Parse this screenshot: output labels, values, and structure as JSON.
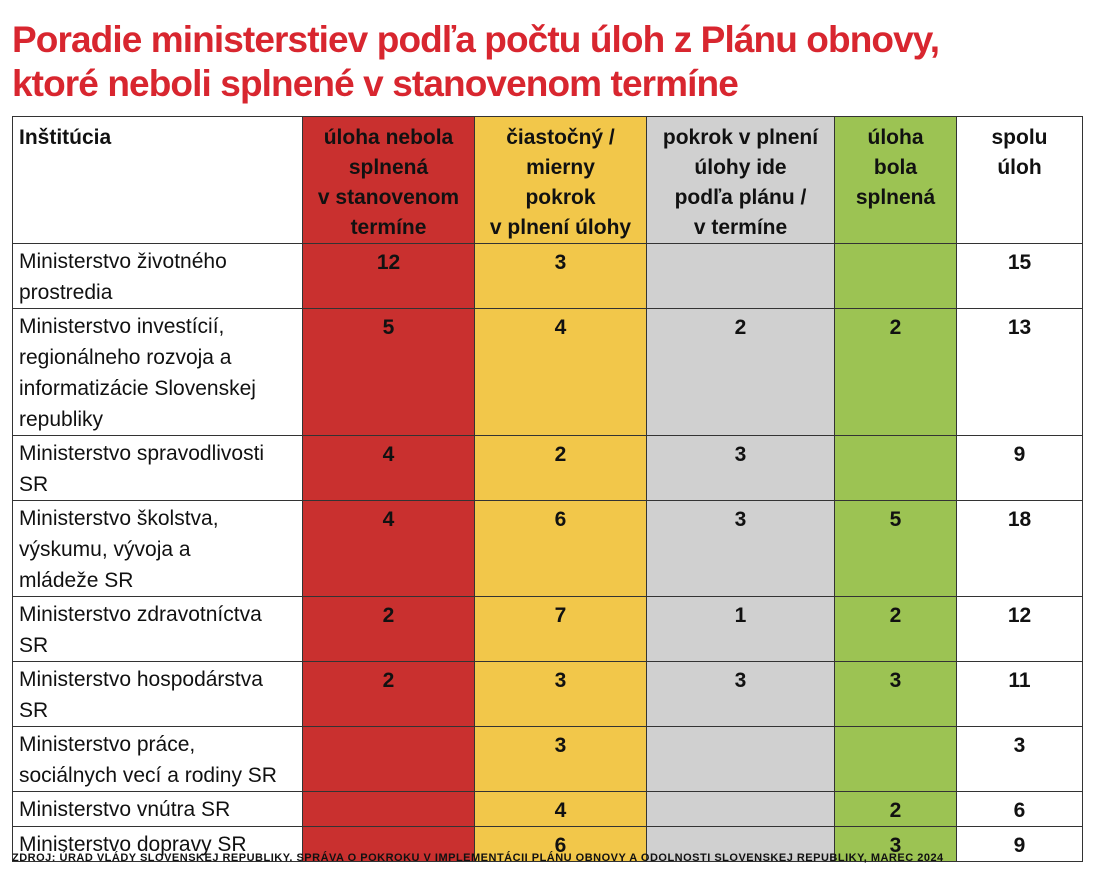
{
  "title": {
    "line1": "Poradie ministerstiev podľa počtu úloh z Plánu obnovy,",
    "line2": "ktoré neboli splnené v stanovenom termíne"
  },
  "table": {
    "headers": {
      "institution": "Inštitúcia",
      "not_met": "úloha nebola splnená v stanovenom termíne",
      "partial": "čiastočný / mierny pokrok v plnení úlohy",
      "on_track": "pokrok v plnení úlohy ide podľa plánu / v termíne",
      "done": "úloha bola splnená",
      "total": "spolu úloh"
    },
    "header_lines": {
      "institution": [
        "Inštitúcia"
      ],
      "not_met": [
        "úloha nebola",
        "splnená",
        "v stanovenom",
        "termíne"
      ],
      "partial": [
        "čiastočný /",
        "mierny",
        "pokrok",
        "v plnení úlohy"
      ],
      "on_track": [
        "pokrok v plnení",
        "úlohy ide",
        "podľa plánu /",
        "v termíne"
      ],
      "done": [
        "úloha",
        "bola",
        "splnená"
      ],
      "total": [
        "spolu",
        "úloh"
      ]
    },
    "column_colors": {
      "not_met": "#c9302f",
      "partial": "#f2c74a",
      "on_track": "#d0d0d0",
      "done": "#9cc353",
      "total": "#ffffff"
    },
    "rows": [
      {
        "institution": [
          "Ministerstvo životného",
          "prostredia"
        ],
        "not_met": "12",
        "partial": "3",
        "on_track": "",
        "done": "",
        "total": "15"
      },
      {
        "institution": [
          "Ministerstvo investícií,",
          "regionálneho rozvoja a",
          "informatizácie Slovenskej",
          "republiky"
        ],
        "not_met": "5",
        "partial": "4",
        "on_track": "2",
        "done": "2",
        "total": "13"
      },
      {
        "institution": [
          "Ministerstvo spravodlivosti",
          "SR"
        ],
        "not_met": "4",
        "partial": "2",
        "on_track": "3",
        "done": "",
        "total": "9"
      },
      {
        "institution": [
          "Ministerstvo školstva,",
          "výskumu, vývoja a",
          "mládeže SR"
        ],
        "not_met": "4",
        "partial": "6",
        "on_track": "3",
        "done": "5",
        "total": "18"
      },
      {
        "institution": [
          "Ministerstvo zdravotníctva",
          "SR"
        ],
        "not_met": "2",
        "partial": "7",
        "on_track": "1",
        "done": "2",
        "total": "12"
      },
      {
        "institution": [
          "Ministerstvo hospodárstva",
          "SR"
        ],
        "not_met": "2",
        "partial": "3",
        "on_track": "3",
        "done": "3",
        "total": "11"
      },
      {
        "institution": [
          "Ministerstvo práce,",
          "sociálnych vecí a rodiny SR"
        ],
        "not_met": "",
        "partial": "3",
        "on_track": "",
        "done": "",
        "total": "3"
      },
      {
        "institution": [
          "Ministerstvo vnútra SR"
        ],
        "not_met": "",
        "partial": "4",
        "on_track": "",
        "done": "2",
        "total": "6"
      },
      {
        "institution": [
          "Ministerstvo dopravy SR"
        ],
        "not_met": "",
        "partial": "6",
        "on_track": "",
        "done": "3",
        "total": "9"
      }
    ]
  },
  "source": "ZDROJ: ÚRAD VLÁDY SLOVENSKEJ REPUBLIKY. SPRÁVA O POKROKU V IMPLEMENTÁCII PLÁNU OBNOVY A ODOLNOSTI SLOVENSKEJ REPUBLIKY, MAREC 2024"
}
